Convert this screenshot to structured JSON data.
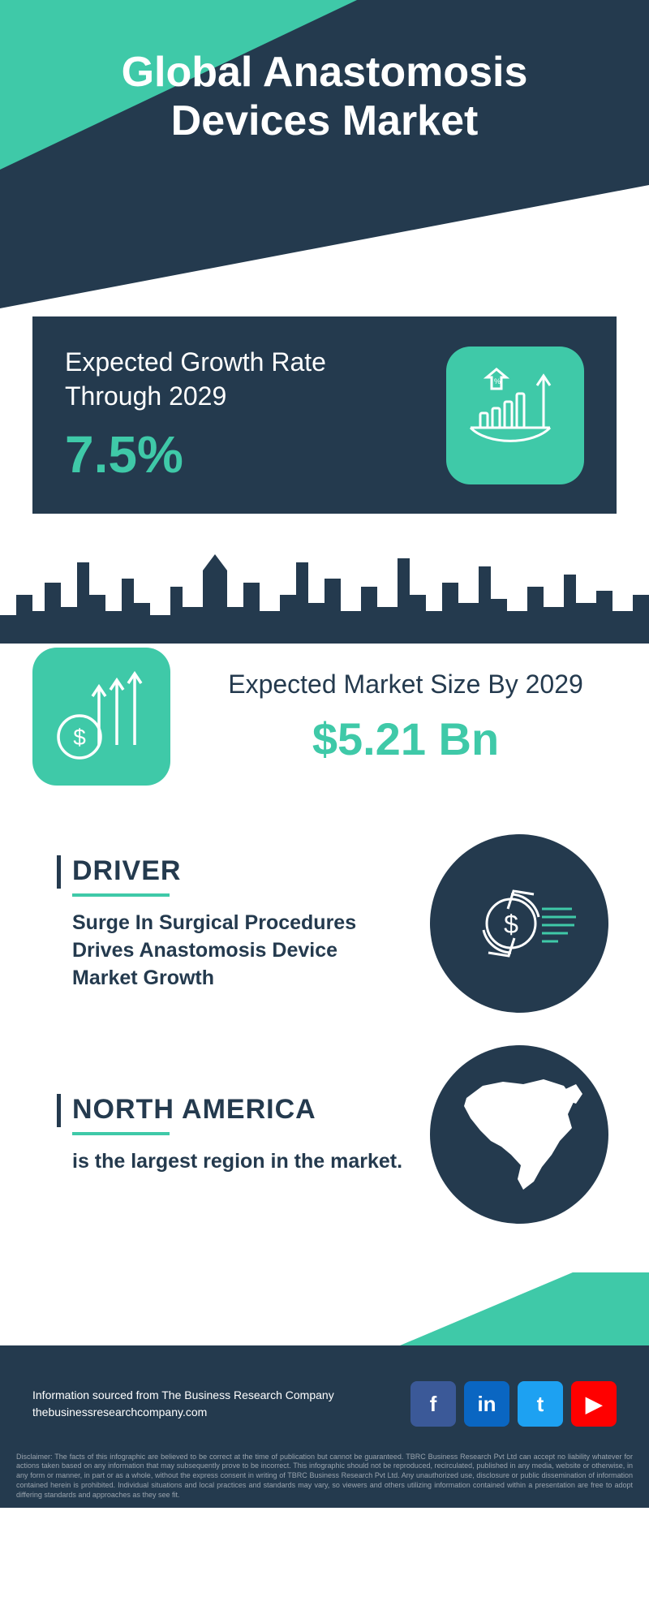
{
  "colors": {
    "dark": "#243a4e",
    "teal": "#3fc9a8",
    "white": "#ffffff",
    "disclaimer": "#9aa4ae"
  },
  "header": {
    "title": "Global Anastomosis Devices Market"
  },
  "growth_rate": {
    "label": "Expected Growth Rate Through 2029",
    "value": "7.5%",
    "icon": "growth-chart-icon"
  },
  "market_size": {
    "label": "Expected Market Size By 2029",
    "value": "$5.21 Bn",
    "icon": "dollar-arrows-icon"
  },
  "driver": {
    "title": "DRIVER",
    "body": "Surge In Surgical Procedures Drives Anastomosis Device Market Growth",
    "icon": "dollar-cycle-icon"
  },
  "region": {
    "title": "NORTH AMERICA",
    "body": "is the largest region in the market.",
    "icon": "north-america-map-icon"
  },
  "footer": {
    "source_line1": "Information sourced from The Business Research Company",
    "source_line2": "thebusinessresearchcompany.com",
    "socials": [
      {
        "name": "facebook",
        "label": "f",
        "bg": "#3b5998"
      },
      {
        "name": "linkedin",
        "label": "in",
        "bg": "#0a66c2"
      },
      {
        "name": "twitter",
        "label": "t",
        "bg": "#1da1f2"
      },
      {
        "name": "youtube",
        "label": "▶",
        "bg": "#ff0000"
      }
    ],
    "disclaimer": "Disclaimer: The facts of this infographic are believed to be correct at the time of publication but cannot be guaranteed. TBRC Business Research Pvt Ltd can accept no liability whatever for actions taken based on any information that may subsequently prove to be incorrect. This infographic should not be reproduced, recirculated, published in any media, website or otherwise, in any form or manner, in part or as a whole, without the express consent in writing of TBRC Business Research Pvt Ltd. Any unauthorized use, disclosure or public dissemination of information contained herein is prohibited. Individual situations and local practices and standards may vary, so viewers and others utilizing information contained within a presentation are free to adopt differing standards and approaches as they see fit."
  }
}
